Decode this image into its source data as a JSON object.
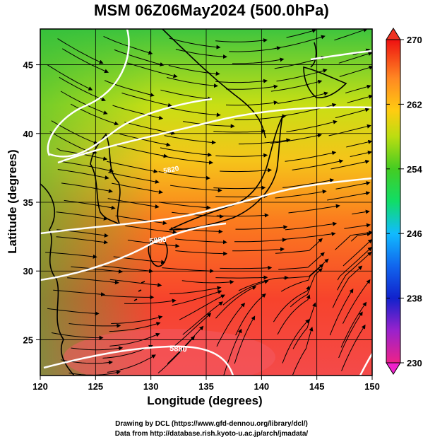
{
  "title": "MSM 06Z06May2024 (500.0hPa)",
  "xlabel": "Longitude (degrees)",
  "ylabel": "Latitude  (degrees)",
  "credits": {
    "line1": "Drawing by DCL (https://www.gfd-dennou.org/library/dcl/)",
    "line2": "Data from http://database.rish.kyoto-u.ac.jp/arch/jmadata/"
  },
  "map": {
    "lon_range": [
      120,
      150
    ],
    "lat_range": [
      22.4,
      47.6
    ],
    "lon_ticks": [
      "120",
      "125",
      "130",
      "135",
      "140",
      "145",
      "150"
    ],
    "lat_ticks": [
      "25",
      "30",
      "35",
      "40",
      "45"
    ],
    "contour_labels": [
      "5820",
      "5880"
    ],
    "field": "temperature (K)",
    "streamlines": "wind vectors"
  },
  "colorbar": {
    "min": 230,
    "max": 270,
    "labels": [
      "270",
      "262",
      "254",
      "246",
      "238",
      "230"
    ],
    "colors": [
      "#ee2288",
      "#9922cc",
      "#1122cc",
      "#1199ff",
      "#11dd66",
      "#33cc33",
      "#99dd11",
      "#ffee00",
      "#ffaa22",
      "#ff6622",
      "#ee1111"
    ]
  }
}
